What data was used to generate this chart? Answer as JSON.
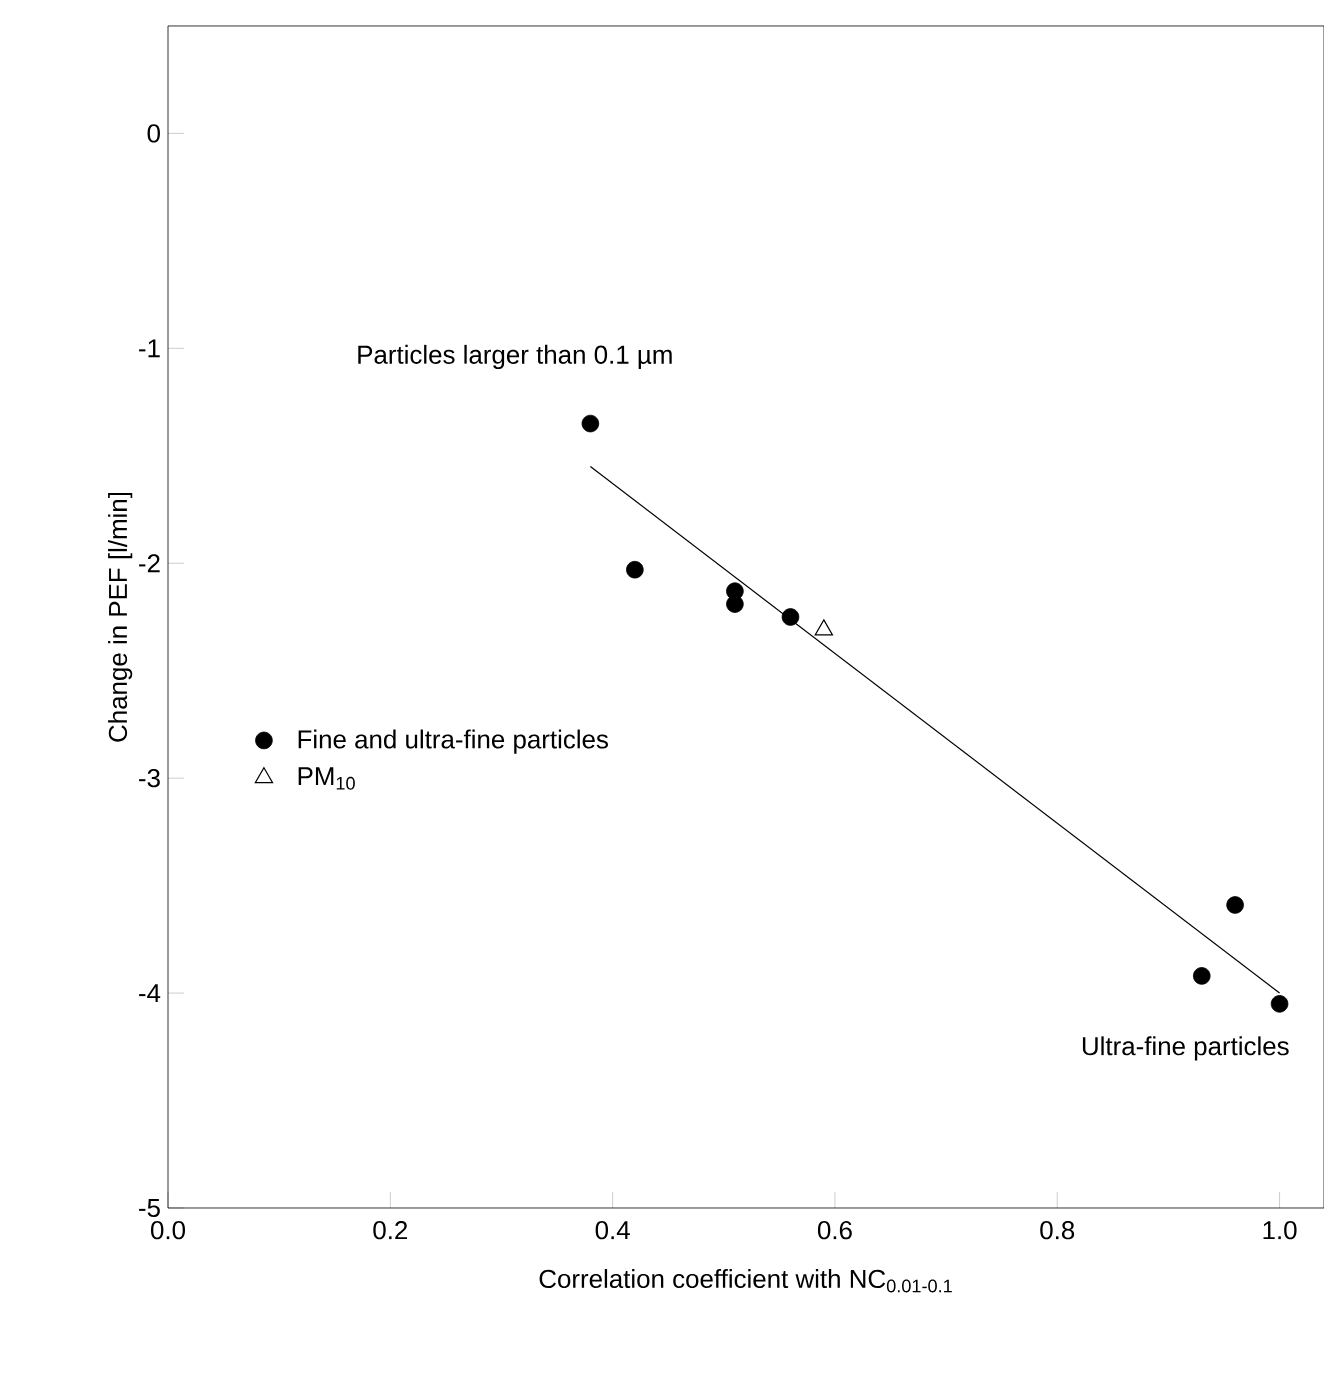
{
  "chart_data": {
    "type": "scatter",
    "xlabel": "Correlation coefficient with NC$_{0.01-0.1}$",
    "ylabel": "Change in PEF [l/min]",
    "xlim": [
      0,
      1.04
    ],
    "ylim": [
      -5,
      0.5
    ],
    "xticks": [
      {
        "value": 0,
        "label": "0.0"
      },
      0.2,
      0.4,
      0.6,
      0.8,
      {
        "value": 1,
        "label": "1.0"
      }
    ],
    "yticks": [
      -5,
      -4,
      -3,
      -2,
      -1,
      0
    ],
    "legend": "left",
    "series": [
      {
        "name": "Fine and ultra-fine particles",
        "color": "#000000",
        "marker": "circle",
        "x": [
          0.38,
          0.42,
          0.51,
          0.51,
          0.56,
          0.93,
          0.96,
          1.0
        ],
        "values": [
          -1.35,
          -2.03,
          -2.13,
          -2.19,
          -2.25,
          -3.92,
          -3.59,
          -4.05
        ]
      },
      {
        "name": "PM$_{10}$",
        "color": "#000000",
        "marker": "triangle",
        "x": [
          0.59
        ],
        "values": [
          -2.31
        ]
      },
      {
        "type": "line",
        "color": "#000000",
        "marker": "none",
        "x": [
          0.38,
          1.0
        ],
        "values": [
          -1.55,
          -4.0
        ]
      }
    ],
    "annotations": [
      "Particles larger than 0.1 µm",
      "Ultra-fine particles"
    ]
  }
}
